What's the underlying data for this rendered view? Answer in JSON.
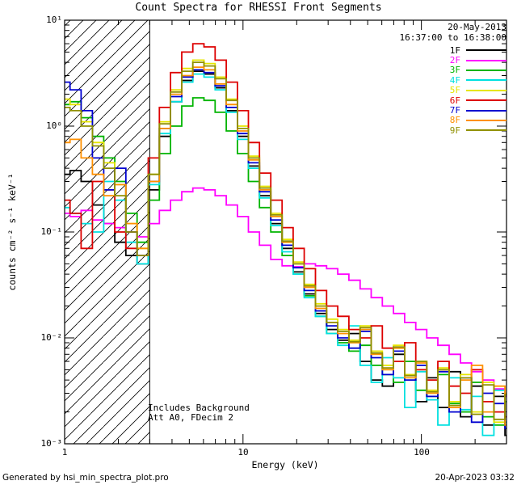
{
  "title": "Count Spectra for RHESSI Front Segments",
  "header_annotations": {
    "date": "20-May-2013",
    "time_range": "16:37:00 to 16:38:00"
  },
  "plot_annotations": {
    "line1": "Includes Background",
    "line2": "Att A0, FDecim 2"
  },
  "footer": {
    "left": "Generated by hsi_min_spectra_plot.pro",
    "right": "20-Apr-2023 03:32"
  },
  "chart_data": {
    "type": "line",
    "mode": "step-histogram",
    "grid": false,
    "legend_position": "top-right",
    "x_axis": {
      "label": "Energy (keV)",
      "scale": "log",
      "range": [
        1,
        300
      ],
      "tick_values": [
        1,
        10,
        100
      ],
      "tick_labels": [
        "1",
        "10",
        "100"
      ]
    },
    "y_axis": {
      "label": "counts cm⁻² s⁻¹ keV⁻¹",
      "scale": "log",
      "range": [
        0.001,
        10
      ],
      "tick_values": [
        0.001,
        0.01,
        0.1,
        1,
        10
      ],
      "tick_labels": [
        "10⁻³",
        "10⁻²",
        "10⁻¹",
        "10⁰",
        "10¹"
      ]
    },
    "hatched_region": {
      "x_min": 1,
      "x_max": 3,
      "style": "diagonal-hatch"
    },
    "x": [
      1.0,
      1.15,
      1.33,
      1.54,
      1.78,
      2.05,
      2.37,
      2.74,
      3.16,
      3.65,
      4.22,
      4.87,
      5.62,
      6.49,
      7.5,
      8.66,
      10.0,
      11.5,
      13.3,
      15.4,
      17.8,
      20.5,
      23.7,
      27.4,
      31.6,
      36.5,
      42.2,
      48.7,
      56.2,
      64.9,
      75.0,
      86.6,
      100,
      115,
      133,
      154,
      178,
      205,
      237,
      274,
      316
    ],
    "series": [
      {
        "name": "1F",
        "color": "#000000",
        "values": [
          0.35,
          0.38,
          0.3,
          0.18,
          0.12,
          0.08,
          0.06,
          0.05,
          0.25,
          0.8,
          1.7,
          2.7,
          3.3,
          3.1,
          2.3,
          1.4,
          0.8,
          0.42,
          0.22,
          0.12,
          0.07,
          0.042,
          0.026,
          0.017,
          0.012,
          0.0095,
          0.011,
          0.006,
          0.004,
          0.0035,
          0.007,
          0.0045,
          0.0025,
          0.0042,
          0.0022,
          0.0048,
          0.0018,
          0.0035,
          0.0015,
          0.0028,
          0.0012
        ]
      },
      {
        "name": "2F",
        "color": "#FF00FF",
        "values": [
          0.15,
          0.14,
          0.16,
          0.13,
          0.12,
          0.11,
          0.1,
          0.09,
          0.12,
          0.16,
          0.2,
          0.24,
          0.26,
          0.25,
          0.22,
          0.18,
          0.14,
          0.1,
          0.075,
          0.055,
          0.048,
          0.047,
          0.05,
          0.048,
          0.045,
          0.04,
          0.035,
          0.029,
          0.024,
          0.02,
          0.017,
          0.014,
          0.012,
          0.01,
          0.0085,
          0.007,
          0.0058,
          0.0048,
          0.004,
          0.0033,
          0.0028
        ]
      },
      {
        "name": "3F",
        "color": "#00B400",
        "values": [
          1.6,
          1.7,
          1.2,
          0.8,
          0.5,
          0.3,
          0.15,
          0.08,
          0.2,
          0.55,
          1.0,
          1.55,
          1.85,
          1.75,
          1.35,
          0.9,
          0.55,
          0.3,
          0.17,
          0.1,
          0.06,
          0.04,
          0.025,
          0.016,
          0.011,
          0.009,
          0.0075,
          0.0085,
          0.0055,
          0.0045,
          0.0038,
          0.006,
          0.0032,
          0.0028,
          0.0045,
          0.0024,
          0.002,
          0.0038,
          0.0018,
          0.0015,
          0.0025
        ]
      },
      {
        "name": "4F",
        "color": "#00E0E0",
        "values": [
          0.17,
          0.15,
          0.12,
          0.1,
          0.3,
          0.2,
          0.08,
          0.05,
          0.28,
          0.85,
          1.7,
          2.6,
          3.1,
          2.9,
          2.2,
          1.35,
          0.75,
          0.4,
          0.21,
          0.115,
          0.065,
          0.04,
          0.024,
          0.016,
          0.011,
          0.0085,
          0.013,
          0.0055,
          0.0038,
          0.0065,
          0.0042,
          0.0022,
          0.0048,
          0.0026,
          0.0015,
          0.0042,
          0.0021,
          0.0028,
          0.0012,
          0.0032,
          0.0016
        ]
      },
      {
        "name": "5F",
        "color": "#E6E600",
        "values": [
          1.8,
          1.6,
          1.1,
          0.7,
          0.45,
          0.28,
          0.12,
          0.07,
          0.35,
          1.1,
          2.2,
          3.5,
          4.2,
          3.9,
          2.9,
          1.8,
          1.0,
          0.52,
          0.27,
          0.15,
          0.085,
          0.052,
          0.032,
          0.021,
          0.015,
          0.012,
          0.0095,
          0.013,
          0.0075,
          0.0055,
          0.0085,
          0.0045,
          0.006,
          0.0032,
          0.0052,
          0.0025,
          0.0045,
          0.002,
          0.0038,
          0.0016,
          0.003
        ]
      },
      {
        "name": "6F",
        "color": "#DD0000",
        "values": [
          0.2,
          0.15,
          0.07,
          0.3,
          0.25,
          0.1,
          0.07,
          0.06,
          0.5,
          1.5,
          3.2,
          5.0,
          6.0,
          5.6,
          4.2,
          2.6,
          1.4,
          0.7,
          0.36,
          0.2,
          0.11,
          0.07,
          0.045,
          0.028,
          0.02,
          0.016,
          0.012,
          0.01,
          0.013,
          0.008,
          0.006,
          0.009,
          0.005,
          0.004,
          0.006,
          0.0035,
          0.003,
          0.005,
          0.0025,
          0.002,
          0.0018
        ]
      },
      {
        "name": "7F",
        "color": "#0000D0",
        "values": [
          2.6,
          2.2,
          1.4,
          0.5,
          0.25,
          0.4,
          0.1,
          0.06,
          0.3,
          0.95,
          1.9,
          2.9,
          3.4,
          3.2,
          2.4,
          1.5,
          0.85,
          0.45,
          0.24,
          0.13,
          0.075,
          0.046,
          0.028,
          0.018,
          0.013,
          0.01,
          0.008,
          0.0115,
          0.0065,
          0.0045,
          0.0075,
          0.004,
          0.0055,
          0.0028,
          0.0048,
          0.002,
          0.0042,
          0.0016,
          0.003,
          0.0024,
          0.0014
        ]
      },
      {
        "name": "8F",
        "color": "#FF9000",
        "values": [
          0.7,
          0.75,
          0.5,
          0.35,
          0.22,
          0.28,
          0.12,
          0.07,
          0.3,
          0.95,
          2.0,
          3.0,
          3.6,
          3.4,
          2.5,
          1.6,
          0.9,
          0.48,
          0.25,
          0.14,
          0.08,
          0.05,
          0.03,
          0.019,
          0.014,
          0.011,
          0.009,
          0.012,
          0.007,
          0.005,
          0.008,
          0.0042,
          0.0058,
          0.003,
          0.005,
          0.0022,
          0.004,
          0.0055,
          0.002,
          0.0035,
          0.0015
        ]
      },
      {
        "name": "9F",
        "color": "#909000",
        "values": [
          1.5,
          1.4,
          1.0,
          0.65,
          0.4,
          0.22,
          0.1,
          0.06,
          0.35,
          1.05,
          2.1,
          3.3,
          4.0,
          3.7,
          2.8,
          1.75,
          0.95,
          0.5,
          0.26,
          0.145,
          0.082,
          0.05,
          0.031,
          0.02,
          0.014,
          0.0115,
          0.0092,
          0.0125,
          0.0072,
          0.0052,
          0.0082,
          0.0044,
          0.006,
          0.0031,
          0.005,
          0.0023,
          0.0042,
          0.0019,
          0.0036,
          0.0017,
          0.0029
        ]
      }
    ]
  }
}
